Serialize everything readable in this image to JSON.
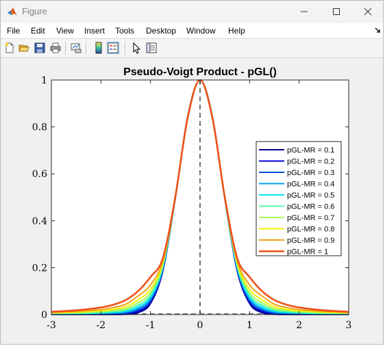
{
  "window": {
    "title": "Figure",
    "icon": "matlab-icon",
    "controls": [
      "minimize-icon",
      "maximize-icon",
      "close-icon"
    ]
  },
  "menu": {
    "items": [
      "File",
      "Edit",
      "View",
      "Insert",
      "Tools",
      "Desktop",
      "Window",
      "Help"
    ],
    "dock_icon": "dock-arrow-icon"
  },
  "toolbar": {
    "buttons": [
      {
        "name": "new-figure",
        "icon": "new-file-icon"
      },
      {
        "name": "open-file",
        "icon": "open-folder-icon"
      },
      {
        "name": "save-figure",
        "icon": "save-disk-icon"
      },
      {
        "name": "print-figure",
        "icon": "printer-icon"
      },
      {
        "name": "link-plot",
        "icon": "link-plot-icon"
      },
      {
        "name": "insert-colorbar",
        "icon": "colorbar-icon"
      },
      {
        "name": "insert-legend",
        "icon": "legend-icon"
      },
      {
        "name": "edit-plot",
        "icon": "pointer-arrow-icon"
      },
      {
        "name": "property-inspector",
        "icon": "property-inspector-icon"
      }
    ]
  },
  "chart_data": {
    "type": "line",
    "title": "Pseudo-Voigt Product - pGL()",
    "xlabel": "",
    "ylabel": "",
    "xlim": [
      -3,
      3
    ],
    "ylim": [
      0,
      1
    ],
    "xticks": [
      "-3",
      "-2",
      "-1",
      "0",
      "1",
      "2",
      "3"
    ],
    "yticks": [
      "0",
      "0.2",
      "0.4",
      "0.6",
      "0.8",
      "1"
    ],
    "xtick_values": [
      -3,
      -2,
      -1,
      0,
      1,
      2,
      3
    ],
    "ytick_values": [
      0,
      0.2,
      0.4,
      0.6,
      0.8,
      1
    ],
    "grid": false,
    "legend_position": "right",
    "center_line": {
      "x": 0,
      "style": "dashed",
      "color": "#707070"
    },
    "baseline": {
      "y": 0,
      "style": "dashed",
      "color": "#707070"
    },
    "x": [
      -3,
      -2.5,
      -2,
      -1.75,
      -1.5,
      -1.25,
      -1,
      -0.75,
      -0.5,
      -0.25,
      0,
      0.25,
      0.5,
      0.75,
      1,
      1.25,
      1.5,
      1.75,
      2,
      2.5,
      3
    ],
    "series": [
      {
        "name": "pGL-MR = 0.1",
        "color": "#00008c",
        "values": [
          0.0,
          0.0,
          0.0,
          0.0,
          0.001,
          0.008,
          0.047,
          0.186,
          0.494,
          0.844,
          1,
          0.844,
          0.494,
          0.186,
          0.047,
          0.008,
          0.001,
          0.0,
          0.0,
          0.0,
          0.0
        ]
      },
      {
        "name": "pGL-MR = 0.2",
        "color": "#0000d8",
        "values": [
          0.001,
          0.001,
          0.002,
          0.003,
          0.004,
          0.014,
          0.053,
          0.19,
          0.494,
          0.843,
          1,
          0.843,
          0.494,
          0.19,
          0.053,
          0.014,
          0.004,
          0.003,
          0.002,
          0.001,
          0.001
        ]
      },
      {
        "name": "pGL-MR = 0.3",
        "color": "#0050d8",
        "values": [
          0.001,
          0.002,
          0.003,
          0.005,
          0.007,
          0.02,
          0.059,
          0.194,
          0.494,
          0.843,
          1,
          0.843,
          0.494,
          0.194,
          0.059,
          0.02,
          0.007,
          0.005,
          0.003,
          0.002,
          0.001
        ]
      },
      {
        "name": "pGL-MR = 0.4",
        "color": "#009cf0",
        "values": [
          0.002,
          0.003,
          0.005,
          0.007,
          0.01,
          0.026,
          0.067,
          0.198,
          0.495,
          0.842,
          1,
          0.842,
          0.495,
          0.198,
          0.067,
          0.026,
          0.01,
          0.007,
          0.005,
          0.003,
          0.002
        ]
      },
      {
        "name": "pGL-MR = 0.5",
        "color": "#00e8f0",
        "values": [
          0.003,
          0.004,
          0.007,
          0.01,
          0.014,
          0.033,
          0.074,
          0.203,
          0.495,
          0.842,
          1,
          0.842,
          0.495,
          0.203,
          0.074,
          0.033,
          0.014,
          0.01,
          0.007,
          0.004,
          0.003
        ]
      },
      {
        "name": "pGL-MR = 0.6",
        "color": "#58f8a8",
        "values": [
          0.004,
          0.006,
          0.009,
          0.013,
          0.019,
          0.041,
          0.083,
          0.208,
          0.496,
          0.841,
          1,
          0.841,
          0.496,
          0.208,
          0.083,
          0.041,
          0.019,
          0.013,
          0.009,
          0.006,
          0.004
        ]
      },
      {
        "name": "pGL-MR = 0.7",
        "color": "#a8f858",
        "values": [
          0.006,
          0.008,
          0.012,
          0.017,
          0.025,
          0.051,
          0.094,
          0.214,
          0.497,
          0.84,
          1,
          0.84,
          0.497,
          0.214,
          0.094,
          0.051,
          0.025,
          0.017,
          0.012,
          0.008,
          0.006
        ]
      },
      {
        "name": "pGL-MR = 0.8",
        "color": "#f0f000",
        "values": [
          0.007,
          0.01,
          0.016,
          0.022,
          0.033,
          0.063,
          0.108,
          0.221,
          0.498,
          0.84,
          1,
          0.84,
          0.498,
          0.221,
          0.108,
          0.063,
          0.033,
          0.022,
          0.016,
          0.01,
          0.007
        ]
      },
      {
        "name": "pGL-MR = 0.9",
        "color": "#f0a018",
        "values": [
          0.009,
          0.013,
          0.021,
          0.03,
          0.044,
          0.079,
          0.127,
          0.23,
          0.499,
          0.839,
          1,
          0.839,
          0.499,
          0.23,
          0.127,
          0.079,
          0.044,
          0.03,
          0.021,
          0.013,
          0.009
        ]
      },
      {
        "name": "pGL-MR = 1",
        "color": "#f05018",
        "values": [
          0.012,
          0.018,
          0.03,
          0.042,
          0.062,
          0.1,
          0.16,
          0.241,
          0.5,
          0.838,
          1,
          0.838,
          0.5,
          0.241,
          0.16,
          0.1,
          0.062,
          0.042,
          0.03,
          0.018,
          0.012
        ]
      }
    ]
  }
}
